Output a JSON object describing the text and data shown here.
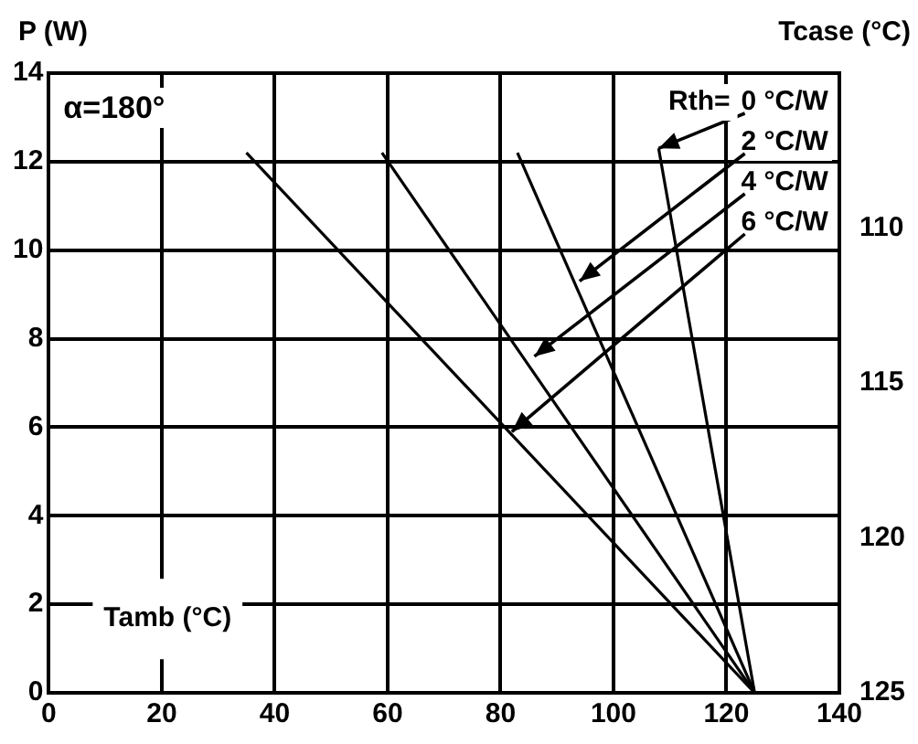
{
  "chart_data": {
    "type": "line",
    "xlabel": "Tamb (°C)",
    "ylabel": "P (W)",
    "y2label": "Tcase (°C)",
    "series": [
      {
        "color": "#000000",
        "x": [
          108,
          125
        ],
        "values": [
          12.3,
          0
        ]
      },
      {
        "color": "#000000",
        "x": [
          83,
          125
        ],
        "values": [
          12.2,
          0
        ]
      },
      {
        "color": "#000000",
        "x": [
          59,
          125
        ],
        "values": [
          12.2,
          0
        ]
      },
      {
        "color": "#000000",
        "x": [
          35,
          125
        ],
        "values": [
          12.2,
          0
        ]
      }
    ],
    "xlim": [
      0,
      140
    ],
    "xticks": [
      0,
      20,
      40,
      60,
      80,
      100,
      120,
      140
    ],
    "ylim": [
      0,
      14
    ],
    "yticks": [
      0,
      2,
      4,
      6,
      8,
      10,
      12,
      14
    ],
    "y2lim": [
      125,
      105
    ],
    "y2ticks": [
      110,
      115,
      120,
      125
    ],
    "grid": true,
    "legend": false,
    "marker": "none",
    "line_style": "solid",
    "annotations": [
      "α=180°",
      "Rth=",
      {
        "text": "0 °C/W",
        "x": 108,
        "y": 12.3
      },
      {
        "text": "2 °C/W",
        "x": 94,
        "y": 9.3
      },
      {
        "text": "4 °C/W",
        "x": 86,
        "y": 7.6
      },
      {
        "text": "6 °C/W",
        "x": 82,
        "y": 5.9
      }
    ]
  }
}
